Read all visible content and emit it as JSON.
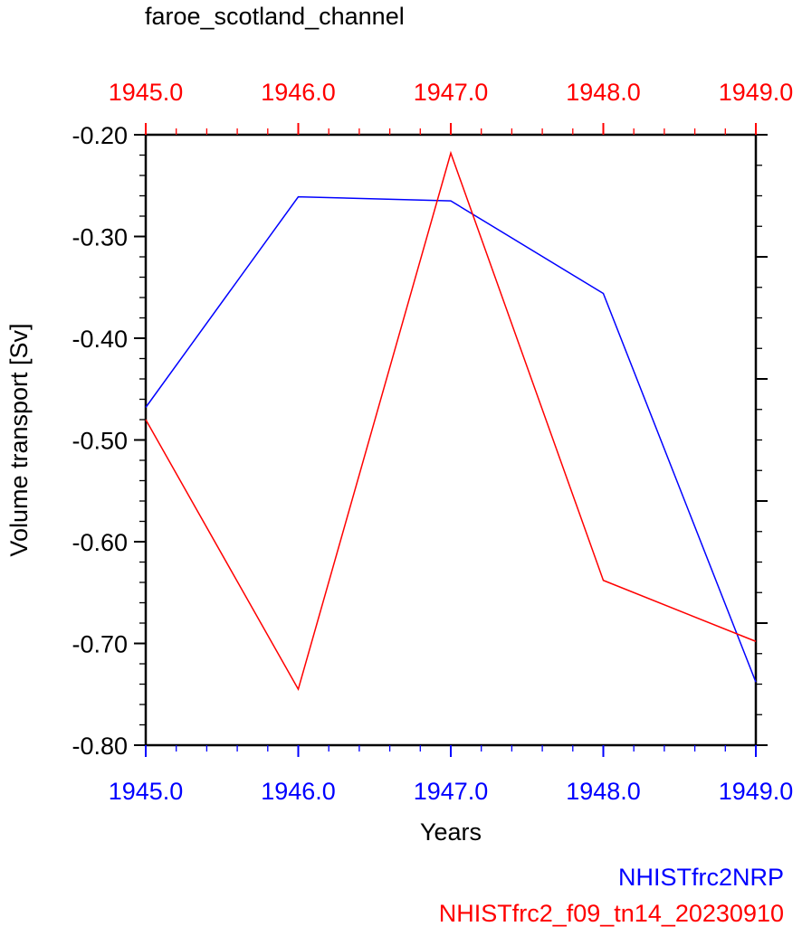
{
  "chart_data": {
    "type": "line",
    "title": "faroe_scotland_channel",
    "xlabel": "Years",
    "ylabel": "Volume transport [Sv]",
    "x": [
      1945.0,
      1946.0,
      1947.0,
      1948.0,
      1949.0
    ],
    "xlim": [
      1945.0,
      1949.0
    ],
    "ylim": [
      -0.8,
      -0.2
    ],
    "x_tick_labels": [
      "1945.0",
      "1946.0",
      "1947.0",
      "1948.0",
      "1949.0"
    ],
    "y_tick_labels": [
      "-0.20",
      "-0.30",
      "-0.40",
      "-0.50",
      "-0.60",
      "-0.70",
      "-0.80"
    ],
    "y_tick_values": [
      -0.2,
      -0.3,
      -0.4,
      -0.5,
      -0.6,
      -0.7,
      -0.8
    ],
    "series": [
      {
        "name": "NHISTfrc2NRP",
        "color": "#0000ff",
        "values": [
          -0.468,
          -0.261,
          -0.265,
          -0.356,
          -0.738
        ]
      },
      {
        "name": "NHISTfrc2_f09_tn14_20230910",
        "color": "#ff0000",
        "values": [
          -0.48,
          -0.745,
          -0.218,
          -0.638,
          -0.698
        ]
      }
    ],
    "axis_colors": {
      "bottom": "#0000ff",
      "top": "#ff0000",
      "left": "#000000"
    },
    "grid": false,
    "legend": "bottom-right"
  }
}
